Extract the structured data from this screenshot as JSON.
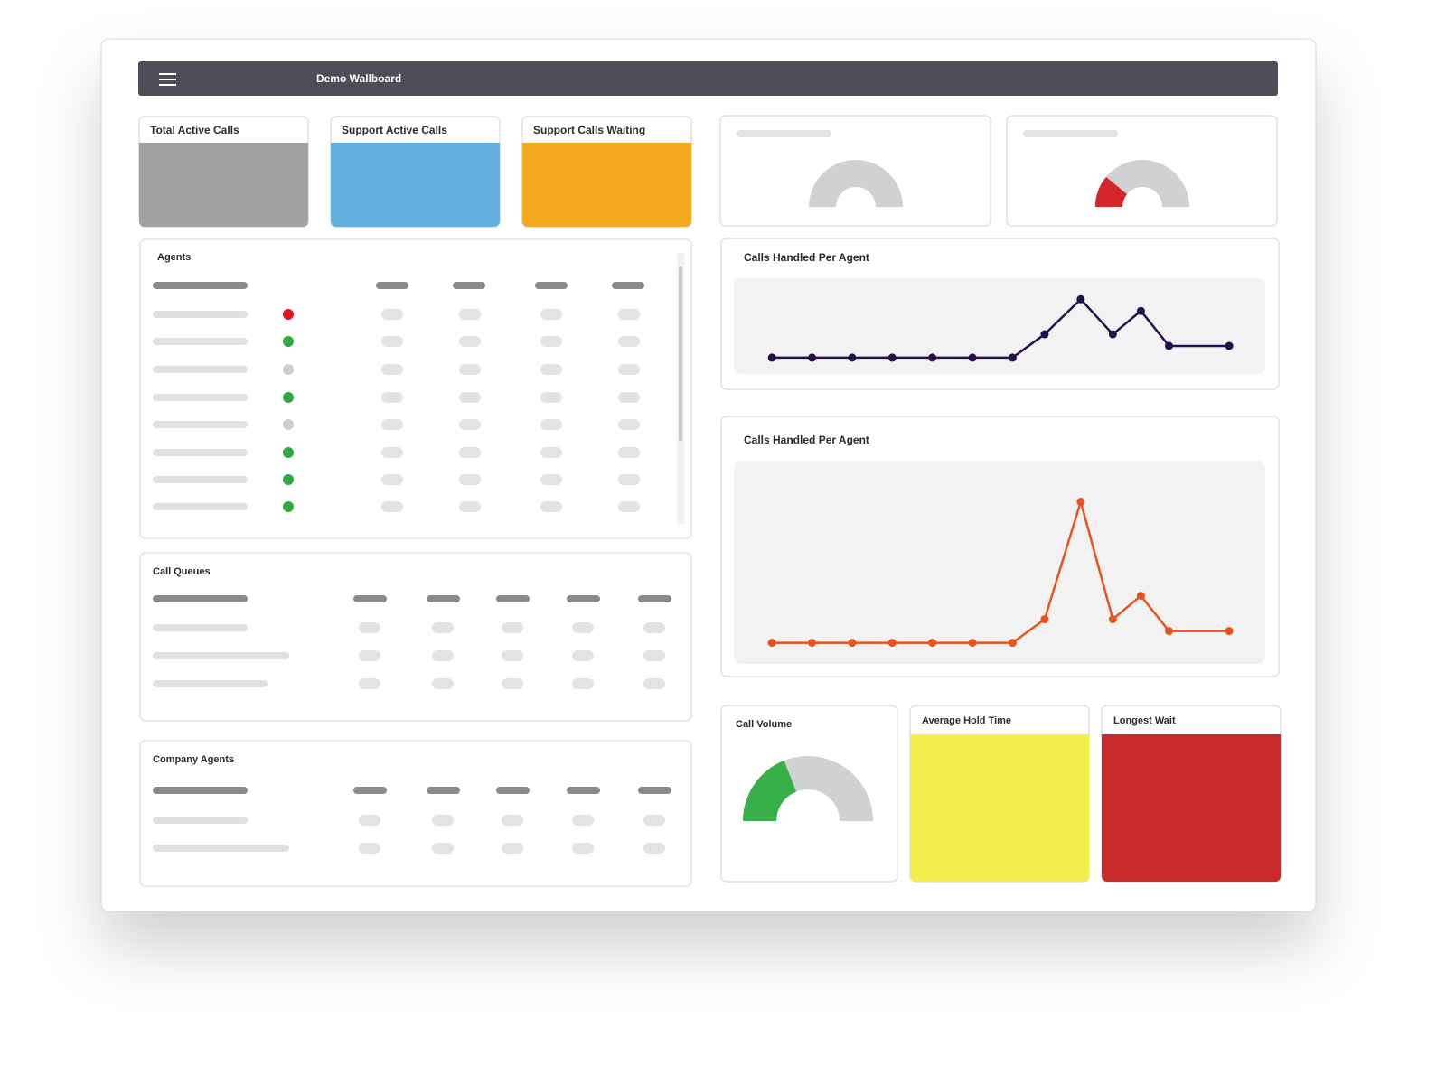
{
  "header": {
    "title": "Demo Wallboard"
  },
  "tiles": [
    {
      "title": "Total Active Calls",
      "color": "#a0a1a3"
    },
    {
      "title": "Support Active Calls",
      "color": "#64b1e1"
    },
    {
      "title": "Support Calls Waiting",
      "color": "#f4a820"
    }
  ],
  "top_gauges": [
    {
      "value": 0,
      "range": [
        0,
        100
      ],
      "color": "#d3262a"
    },
    {
      "value": 22,
      "range": [
        0,
        100
      ],
      "color": "#d3262a"
    }
  ],
  "agents": {
    "title": "Agents",
    "status_colors": [
      "#e3151e",
      "#33a744",
      "#cfcfd1",
      "#33a744",
      "#cfcfd1",
      "#33a744",
      "#33a744",
      "#33a744"
    ]
  },
  "call_queues": {
    "title": "Call Queues"
  },
  "company_agents": {
    "title": "Company Agents"
  },
  "charts": [
    {
      "type": "line",
      "title": "Calls Handled Per Agent",
      "color": "#25104f",
      "x": [
        0,
        1,
        2,
        3,
        4,
        5,
        6,
        6.8,
        7.7,
        8.5,
        9.2,
        9.9,
        11.4
      ],
      "values": [
        0,
        0,
        0,
        0,
        0,
        0,
        0,
        2,
        5,
        2,
        4,
        1,
        1
      ],
      "xlim": [
        -0.95,
        12.3
      ],
      "ylim": [
        -1.4,
        6.8
      ]
    },
    {
      "type": "line",
      "title": "Calls Handled Per Agent",
      "color": "#e9531f",
      "x": [
        0,
        1,
        2,
        3,
        4,
        5,
        6,
        6.8,
        7.7,
        8.5,
        9.2,
        9.9,
        11.4
      ],
      "values": [
        0,
        0,
        0,
        0,
        0,
        0,
        0,
        2,
        12,
        2,
        4,
        1,
        1
      ],
      "xlim": [
        -0.95,
        12.3
      ],
      "ylim": [
        -1.8,
        15.5
      ]
    }
  ],
  "call_volume": {
    "title": "Call Volume",
    "value": 38,
    "range": [
      0,
      100
    ],
    "color": "#38b049"
  },
  "stat_tiles": [
    {
      "title": "Average Hold Time",
      "color": "#f4ee4c"
    },
    {
      "title": "Longest Wait",
      "color": "#c82b2b"
    }
  ]
}
